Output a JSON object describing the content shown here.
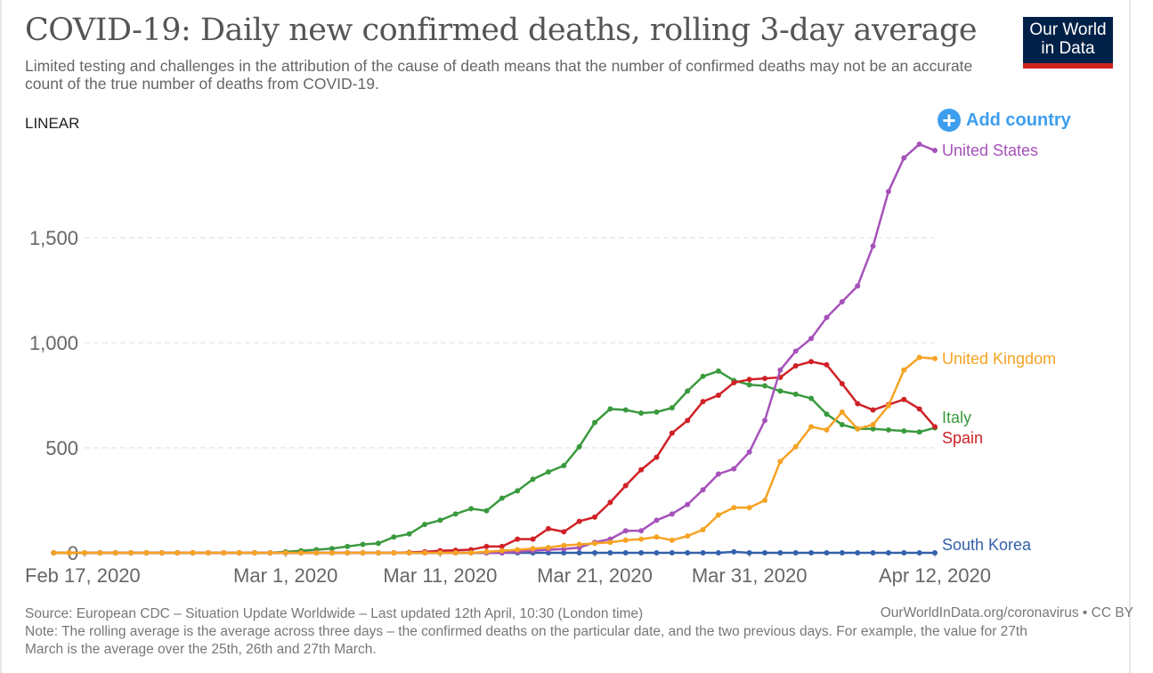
{
  "header": {
    "title": "COVID-19: Daily new confirmed deaths, rolling 3-day average",
    "subtitle": "Limited testing and challenges in the attribution of the cause of death means that the number of confirmed deaths may not be an accurate count of the true number of deaths from COVID-19.",
    "logo_line1": "Our World",
    "logo_line2": "in Data"
  },
  "controls": {
    "scale_label": "LINEAR",
    "add_country_label": "Add country",
    "add_icon": "plus-circle-icon"
  },
  "footer": {
    "source": "Source: European CDC – Situation Update Worldwide – Last updated 12th April, 10:30 (London time)",
    "link": "OurWorldInData.org/coronavirus • CC BY",
    "note": "Note: The rolling average is the average across three days – the confirmed deaths on the particular date, and the two previous days. For example, the value for 27th March is the average over the 25th, 26th and 27th March."
  },
  "colors": {
    "united_states": "#a652ba",
    "united_kingdom": "#f6a324",
    "italy": "#3a9a3e",
    "spain": "#cf2127",
    "south_korea": "#3360a9",
    "grid": "#dddddd",
    "axis_text": "#666666",
    "accent": "#3d9eee"
  },
  "chart_data": {
    "type": "line",
    "title": "COVID-19: Daily new confirmed deaths, rolling 3-day average",
    "xlabel": "",
    "ylabel": "",
    "x_start": "2020-02-17",
    "x_end": "2020-04-12",
    "x_ticks": [
      "Feb 17, 2020",
      "Mar 1, 2020",
      "Mar 11, 2020",
      "Mar 21, 2020",
      "Mar 31, 2020",
      "Apr 12, 2020"
    ],
    "x_tick_days": [
      0,
      13,
      23,
      33,
      43,
      55
    ],
    "y_ticks": [
      0,
      500,
      1000,
      1500
    ],
    "y_tick_labels": [
      "0",
      "500",
      "1,000",
      "1,500"
    ],
    "ylim": [
      0,
      1950
    ],
    "grid": true,
    "legend": "right-end-labels",
    "series": [
      {
        "name": "South Korea",
        "color_key": "south_korea",
        "start_day": 0,
        "values": [
          0,
          0,
          0,
          0,
          0,
          0,
          0,
          0,
          0,
          0,
          0,
          0,
          0,
          0,
          0,
          0,
          0,
          0,
          0,
          0,
          0,
          0,
          0,
          0,
          0,
          0,
          0,
          0,
          0,
          0,
          0,
          0,
          0,
          0,
          0,
          0,
          0,
          0,
          0,
          0,
          0,
          0,
          5,
          0,
          0,
          0,
          0,
          0,
          0,
          0,
          0,
          0,
          0,
          0,
          0,
          0
        ]
      },
      {
        "name": "Italy",
        "color_key": "italy",
        "start_day": 0,
        "values": [
          0,
          0,
          0,
          0,
          0,
          0,
          0,
          0,
          0,
          0,
          0,
          0,
          0,
          0,
          0,
          5,
          10,
          15,
          20,
          30,
          40,
          45,
          75,
          90,
          135,
          155,
          185,
          210,
          200,
          260,
          295,
          350,
          385,
          415,
          505,
          620,
          685,
          680,
          665,
          670,
          690,
          770,
          840,
          865,
          820,
          800,
          795,
          770,
          755,
          735,
          660,
          610,
          590,
          590,
          585,
          580,
          575,
          595
        ]
      },
      {
        "name": "Spain",
        "color_key": "spain",
        "start_day": 0,
        "values": [
          0,
          0,
          0,
          0,
          0,
          0,
          0,
          0,
          0,
          0,
          0,
          0,
          0,
          0,
          0,
          0,
          0,
          0,
          0,
          0,
          0,
          0,
          0,
          2,
          5,
          10,
          12,
          15,
          30,
          30,
          65,
          65,
          115,
          100,
          150,
          170,
          240,
          320,
          395,
          455,
          570,
          630,
          720,
          750,
          810,
          825,
          830,
          835,
          890,
          910,
          895,
          805,
          710,
          680,
          705,
          730,
          685,
          600
        ]
      },
      {
        "name": "United States",
        "color_key": "united_states",
        "start_day": 0,
        "values": [
          0,
          0,
          0,
          0,
          0,
          0,
          0,
          0,
          0,
          0,
          0,
          0,
          0,
          0,
          0,
          0,
          0,
          0,
          0,
          0,
          0,
          0,
          0,
          0,
          0,
          0,
          0,
          0,
          5,
          10,
          15,
          18,
          25,
          50,
          65,
          105,
          105,
          155,
          185,
          230,
          300,
          375,
          400,
          480,
          630,
          870,
          960,
          1020,
          1120,
          1195,
          1270,
          1460,
          1720,
          1880,
          1945,
          1915
        ]
      },
      {
        "name": "United Kingdom",
        "color_key": "united_kingdom",
        "start_day": 0,
        "values": [
          0,
          0,
          0,
          0,
          0,
          0,
          0,
          0,
          0,
          0,
          0,
          0,
          0,
          0,
          0,
          0,
          0,
          0,
          0,
          0,
          0,
          0,
          0,
          0,
          0,
          0,
          0,
          0,
          5,
          10,
          15,
          20,
          25,
          35,
          40,
          45,
          50,
          60,
          65,
          75,
          60,
          80,
          110,
          180,
          215,
          215,
          250,
          435,
          505,
          600,
          585,
          670,
          590,
          610,
          700,
          870,
          930,
          925
        ]
      }
    ]
  }
}
